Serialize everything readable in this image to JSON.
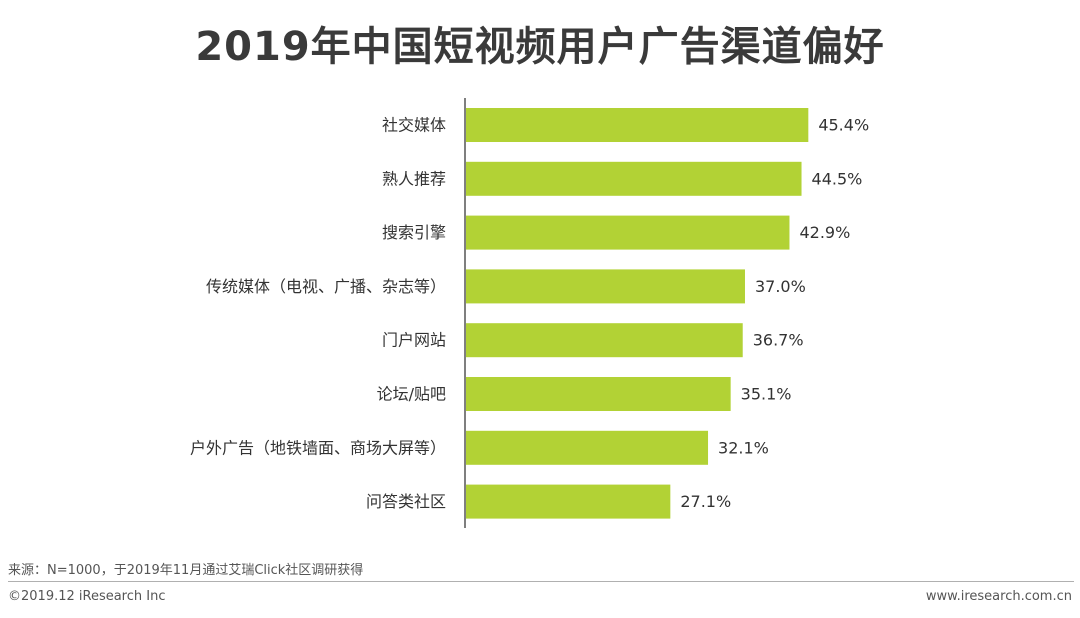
{
  "title": "2019年中国短视频用户广告渠道偏好",
  "chart_data": {
    "type": "bar",
    "orientation": "horizontal",
    "categories": [
      "社交媒体",
      "熟人推荐",
      "搜索引擎",
      "传统媒体（电视、广播、杂志等）",
      "门户网站",
      "论坛/贴吧",
      "户外广告（地铁墙面、商场大屏等）",
      "问答类社区"
    ],
    "values": [
      45.4,
      44.5,
      42.9,
      37.0,
      36.7,
      35.1,
      32.1,
      27.1
    ],
    "value_labels": [
      "45.4%",
      "44.5%",
      "42.9%",
      "37.0%",
      "36.7%",
      "35.1%",
      "32.1%",
      "27.1%"
    ],
    "unit": "%",
    "xlim": [
      0,
      50
    ],
    "bar_color": "#b2d235",
    "grid": false,
    "legend": "none"
  },
  "footer": {
    "source": "来源：N=1000，于2019年11月通过艾瑞Click社区调研获得",
    "copyright": "©2019.12 iResearch Inc",
    "website": "www.iresearch.com.cn"
  }
}
